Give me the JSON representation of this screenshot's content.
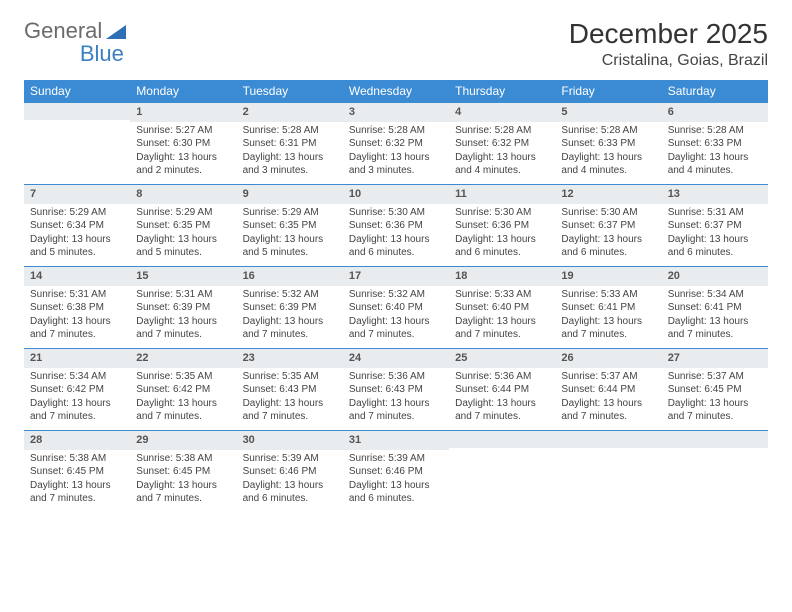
{
  "logo": {
    "text1": "General",
    "text2": "Blue"
  },
  "title": "December 2025",
  "location": "Cristalina, Goias, Brazil",
  "colors": {
    "header_bg": "#3b8bd4",
    "header_text": "#ffffff",
    "daynum_bg": "#e9ecef",
    "border": "#3b8bd4",
    "text": "#444444",
    "title": "#333333"
  },
  "weekdays": [
    "Sunday",
    "Monday",
    "Tuesday",
    "Wednesday",
    "Thursday",
    "Friday",
    "Saturday"
  ],
  "weeks": [
    [
      null,
      {
        "n": "1",
        "sr": "5:27 AM",
        "ss": "6:30 PM",
        "dl": "13 hours and 2 minutes."
      },
      {
        "n": "2",
        "sr": "5:28 AM",
        "ss": "6:31 PM",
        "dl": "13 hours and 3 minutes."
      },
      {
        "n": "3",
        "sr": "5:28 AM",
        "ss": "6:32 PM",
        "dl": "13 hours and 3 minutes."
      },
      {
        "n": "4",
        "sr": "5:28 AM",
        "ss": "6:32 PM",
        "dl": "13 hours and 4 minutes."
      },
      {
        "n": "5",
        "sr": "5:28 AM",
        "ss": "6:33 PM",
        "dl": "13 hours and 4 minutes."
      },
      {
        "n": "6",
        "sr": "5:28 AM",
        "ss": "6:33 PM",
        "dl": "13 hours and 4 minutes."
      }
    ],
    [
      {
        "n": "7",
        "sr": "5:29 AM",
        "ss": "6:34 PM",
        "dl": "13 hours and 5 minutes."
      },
      {
        "n": "8",
        "sr": "5:29 AM",
        "ss": "6:35 PM",
        "dl": "13 hours and 5 minutes."
      },
      {
        "n": "9",
        "sr": "5:29 AM",
        "ss": "6:35 PM",
        "dl": "13 hours and 5 minutes."
      },
      {
        "n": "10",
        "sr": "5:30 AM",
        "ss": "6:36 PM",
        "dl": "13 hours and 6 minutes."
      },
      {
        "n": "11",
        "sr": "5:30 AM",
        "ss": "6:36 PM",
        "dl": "13 hours and 6 minutes."
      },
      {
        "n": "12",
        "sr": "5:30 AM",
        "ss": "6:37 PM",
        "dl": "13 hours and 6 minutes."
      },
      {
        "n": "13",
        "sr": "5:31 AM",
        "ss": "6:37 PM",
        "dl": "13 hours and 6 minutes."
      }
    ],
    [
      {
        "n": "14",
        "sr": "5:31 AM",
        "ss": "6:38 PM",
        "dl": "13 hours and 7 minutes."
      },
      {
        "n": "15",
        "sr": "5:31 AM",
        "ss": "6:39 PM",
        "dl": "13 hours and 7 minutes."
      },
      {
        "n": "16",
        "sr": "5:32 AM",
        "ss": "6:39 PM",
        "dl": "13 hours and 7 minutes."
      },
      {
        "n": "17",
        "sr": "5:32 AM",
        "ss": "6:40 PM",
        "dl": "13 hours and 7 minutes."
      },
      {
        "n": "18",
        "sr": "5:33 AM",
        "ss": "6:40 PM",
        "dl": "13 hours and 7 minutes."
      },
      {
        "n": "19",
        "sr": "5:33 AM",
        "ss": "6:41 PM",
        "dl": "13 hours and 7 minutes."
      },
      {
        "n": "20",
        "sr": "5:34 AM",
        "ss": "6:41 PM",
        "dl": "13 hours and 7 minutes."
      }
    ],
    [
      {
        "n": "21",
        "sr": "5:34 AM",
        "ss": "6:42 PM",
        "dl": "13 hours and 7 minutes."
      },
      {
        "n": "22",
        "sr": "5:35 AM",
        "ss": "6:42 PM",
        "dl": "13 hours and 7 minutes."
      },
      {
        "n": "23",
        "sr": "5:35 AM",
        "ss": "6:43 PM",
        "dl": "13 hours and 7 minutes."
      },
      {
        "n": "24",
        "sr": "5:36 AM",
        "ss": "6:43 PM",
        "dl": "13 hours and 7 minutes."
      },
      {
        "n": "25",
        "sr": "5:36 AM",
        "ss": "6:44 PM",
        "dl": "13 hours and 7 minutes."
      },
      {
        "n": "26",
        "sr": "5:37 AM",
        "ss": "6:44 PM",
        "dl": "13 hours and 7 minutes."
      },
      {
        "n": "27",
        "sr": "5:37 AM",
        "ss": "6:45 PM",
        "dl": "13 hours and 7 minutes."
      }
    ],
    [
      {
        "n": "28",
        "sr": "5:38 AM",
        "ss": "6:45 PM",
        "dl": "13 hours and 7 minutes."
      },
      {
        "n": "29",
        "sr": "5:38 AM",
        "ss": "6:45 PM",
        "dl": "13 hours and 7 minutes."
      },
      {
        "n": "30",
        "sr": "5:39 AM",
        "ss": "6:46 PM",
        "dl": "13 hours and 6 minutes."
      },
      {
        "n": "31",
        "sr": "5:39 AM",
        "ss": "6:46 PM",
        "dl": "13 hours and 6 minutes."
      },
      null,
      null,
      null
    ]
  ],
  "labels": {
    "sunrise": "Sunrise:",
    "sunset": "Sunset:",
    "daylight": "Daylight:"
  }
}
